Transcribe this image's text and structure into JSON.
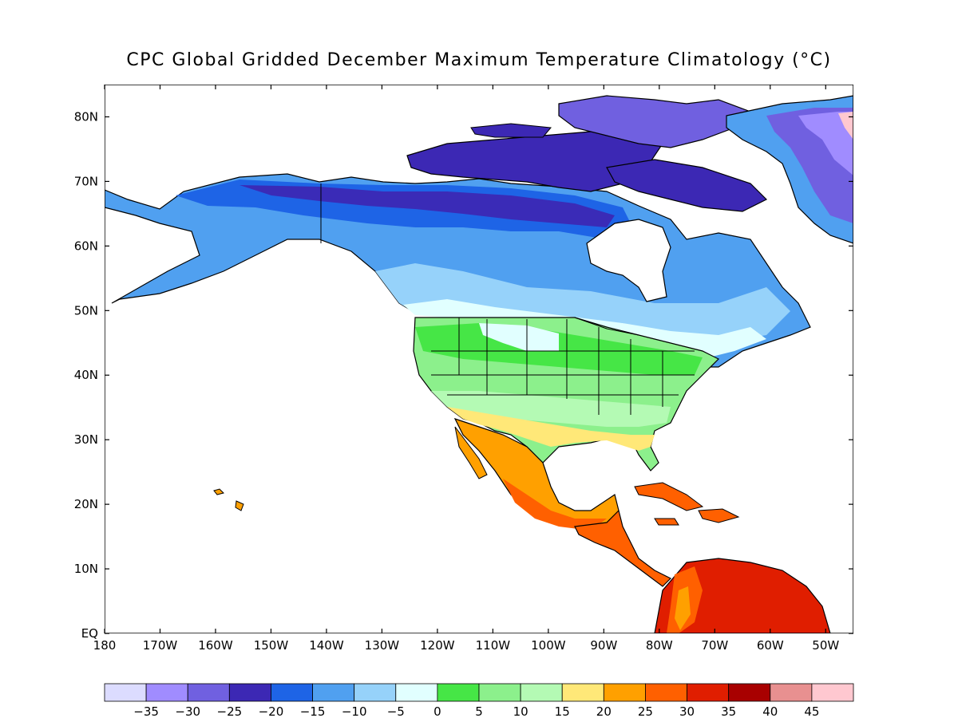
{
  "title": "CPC Global Gridded December Maximum Temperature Climatology (°C)",
  "map": {
    "lon_range": [
      -180,
      -45
    ],
    "lat_range": [
      0,
      85
    ],
    "lon_ticks": [
      "180",
      "170W",
      "160W",
      "150W",
      "140W",
      "130W",
      "120W",
      "110W",
      "100W",
      "90W",
      "80W",
      "70W",
      "60W",
      "50W"
    ],
    "lat_ticks": [
      "EQ",
      "10N",
      "20N",
      "30N",
      "40N",
      "50N",
      "60N",
      "70N",
      "80N"
    ]
  },
  "colorbar": {
    "colors": [
      "#dcdcff",
      "#a08cff",
      "#7060e0",
      "#3c28b4",
      "#1e64e6",
      "#50a0f0",
      "#96d2fa",
      "#e1ffff",
      "#46e646",
      "#8cf08c",
      "#b4fab4",
      "#ffe878",
      "#ffa000",
      "#ff6000",
      "#e01e00",
      "#a80000",
      "#e89090",
      "#ffc8d0"
    ],
    "labels": [
      "−35",
      "−30",
      "−25",
      "−20",
      "−15",
      "−10",
      "−5",
      "0",
      "5",
      "10",
      "15",
      "20",
      "25",
      "30",
      "35",
      "40",
      "45"
    ]
  }
}
